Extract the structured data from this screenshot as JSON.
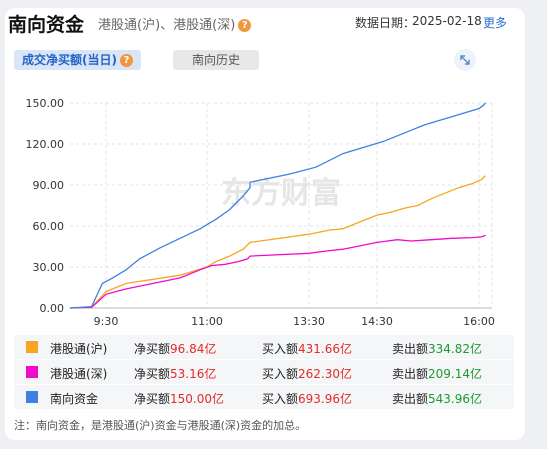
{
  "header": {
    "title": "南向资金",
    "subtitle": "港股通(沪)、港股通(深)",
    "help": "?",
    "date_label": "数据日期：",
    "date": "2025-02-18",
    "more": "更多"
  },
  "tabs": [
    {
      "label": "成交净买额(当日)",
      "help": "?"
    },
    {
      "label": "南向历史"
    }
  ],
  "watermark": "东方财富",
  "colors": {
    "sh": "#f5a623",
    "sz": "#f00acd",
    "total": "#3d82e0"
  },
  "chart_data": {
    "type": "line",
    "xlabel": "",
    "ylabel": "",
    "y_ticks": [
      "150.00",
      "120.00",
      "90.00",
      "60.00",
      "30.00",
      "0.00"
    ],
    "x_ticks": [
      "9:30",
      "11:00",
      "13:30",
      "14:30",
      "16:00"
    ],
    "ylim": [
      0,
      150
    ],
    "grid": true,
    "series": [
      {
        "name": "港股通(沪)",
        "color": "#f5a623",
        "points": [
          [
            9.0,
            0
          ],
          [
            9.3,
            0.5
          ],
          [
            9.5,
            12
          ],
          [
            9.8,
            18
          ],
          [
            10.2,
            21
          ],
          [
            10.6,
            24
          ],
          [
            11.0,
            30
          ],
          [
            11.2,
            34
          ],
          [
            11.5,
            38
          ],
          [
            11.8,
            43
          ],
          [
            13.2,
            48
          ],
          [
            13.5,
            54
          ],
          [
            13.8,
            57
          ],
          [
            14.0,
            58
          ],
          [
            14.3,
            64
          ],
          [
            14.5,
            68
          ],
          [
            14.7,
            70
          ],
          [
            14.9,
            73
          ],
          [
            15.1,
            75
          ],
          [
            15.3,
            80
          ],
          [
            15.5,
            84
          ],
          [
            15.7,
            88
          ],
          [
            15.9,
            91
          ],
          [
            16.1,
            94
          ],
          [
            16.25,
            96.84
          ]
        ]
      },
      {
        "name": "港股通(深)",
        "color": "#f00acd",
        "points": [
          [
            9.0,
            0
          ],
          [
            9.3,
            0.5
          ],
          [
            9.5,
            10
          ],
          [
            9.8,
            14
          ],
          [
            10.2,
            18
          ],
          [
            10.6,
            22
          ],
          [
            10.9,
            28
          ],
          [
            11.1,
            31
          ],
          [
            11.4,
            32
          ],
          [
            11.7,
            34
          ],
          [
            11.9,
            36
          ],
          [
            13.2,
            38
          ],
          [
            13.5,
            40
          ],
          [
            13.8,
            42
          ],
          [
            14.0,
            43
          ],
          [
            14.3,
            46
          ],
          [
            14.5,
            48
          ],
          [
            14.8,
            50
          ],
          [
            15.0,
            49
          ],
          [
            15.3,
            50
          ],
          [
            15.6,
            51
          ],
          [
            15.9,
            51.5
          ],
          [
            16.1,
            52
          ],
          [
            16.25,
            53.16
          ]
        ]
      },
      {
        "name": "南向资金",
        "color": "#3d82e0",
        "points": [
          [
            9.0,
            0
          ],
          [
            9.3,
            1
          ],
          [
            9.45,
            18
          ],
          [
            9.6,
            22
          ],
          [
            9.8,
            28
          ],
          [
            10.0,
            36
          ],
          [
            10.3,
            44
          ],
          [
            10.6,
            51
          ],
          [
            10.9,
            58
          ],
          [
            11.2,
            65
          ],
          [
            11.5,
            72
          ],
          [
            11.8,
            82
          ],
          [
            11.95,
            88
          ],
          [
            13.2,
            92
          ],
          [
            13.4,
            98
          ],
          [
            13.6,
            103
          ],
          [
            13.8,
            108
          ],
          [
            14.0,
            113
          ],
          [
            14.2,
            116
          ],
          [
            14.4,
            119
          ],
          [
            14.6,
            122
          ],
          [
            14.8,
            126
          ],
          [
            15.0,
            130
          ],
          [
            15.2,
            134
          ],
          [
            15.4,
            137
          ],
          [
            15.6,
            140
          ],
          [
            15.8,
            143
          ],
          [
            16.0,
            146
          ],
          [
            16.15,
            148
          ],
          [
            16.25,
            150
          ]
        ]
      }
    ]
  },
  "legend": [
    {
      "name": "港股通(沪)",
      "color": "#f5a623",
      "net_label": "净买额",
      "net": "96.84亿",
      "buy_label": "买入额",
      "buy": "431.66亿",
      "sell_label": "卖出额",
      "sell": "334.82亿"
    },
    {
      "name": "港股通(深)",
      "color": "#f00acd",
      "net_label": "净买额",
      "net": "53.16亿",
      "buy_label": "买入额",
      "buy": "262.30亿",
      "sell_label": "卖出额",
      "sell": "209.14亿"
    },
    {
      "name": "南向资金",
      "color": "#3d82e0",
      "net_label": "净买额",
      "net": "150.00亿",
      "buy_label": "买入额",
      "buy": "693.96亿",
      "sell_label": "卖出额",
      "sell": "543.96亿"
    }
  ],
  "note": "注：南向资金，是港股通(沪)资金与港股通(深)资金的加总。"
}
